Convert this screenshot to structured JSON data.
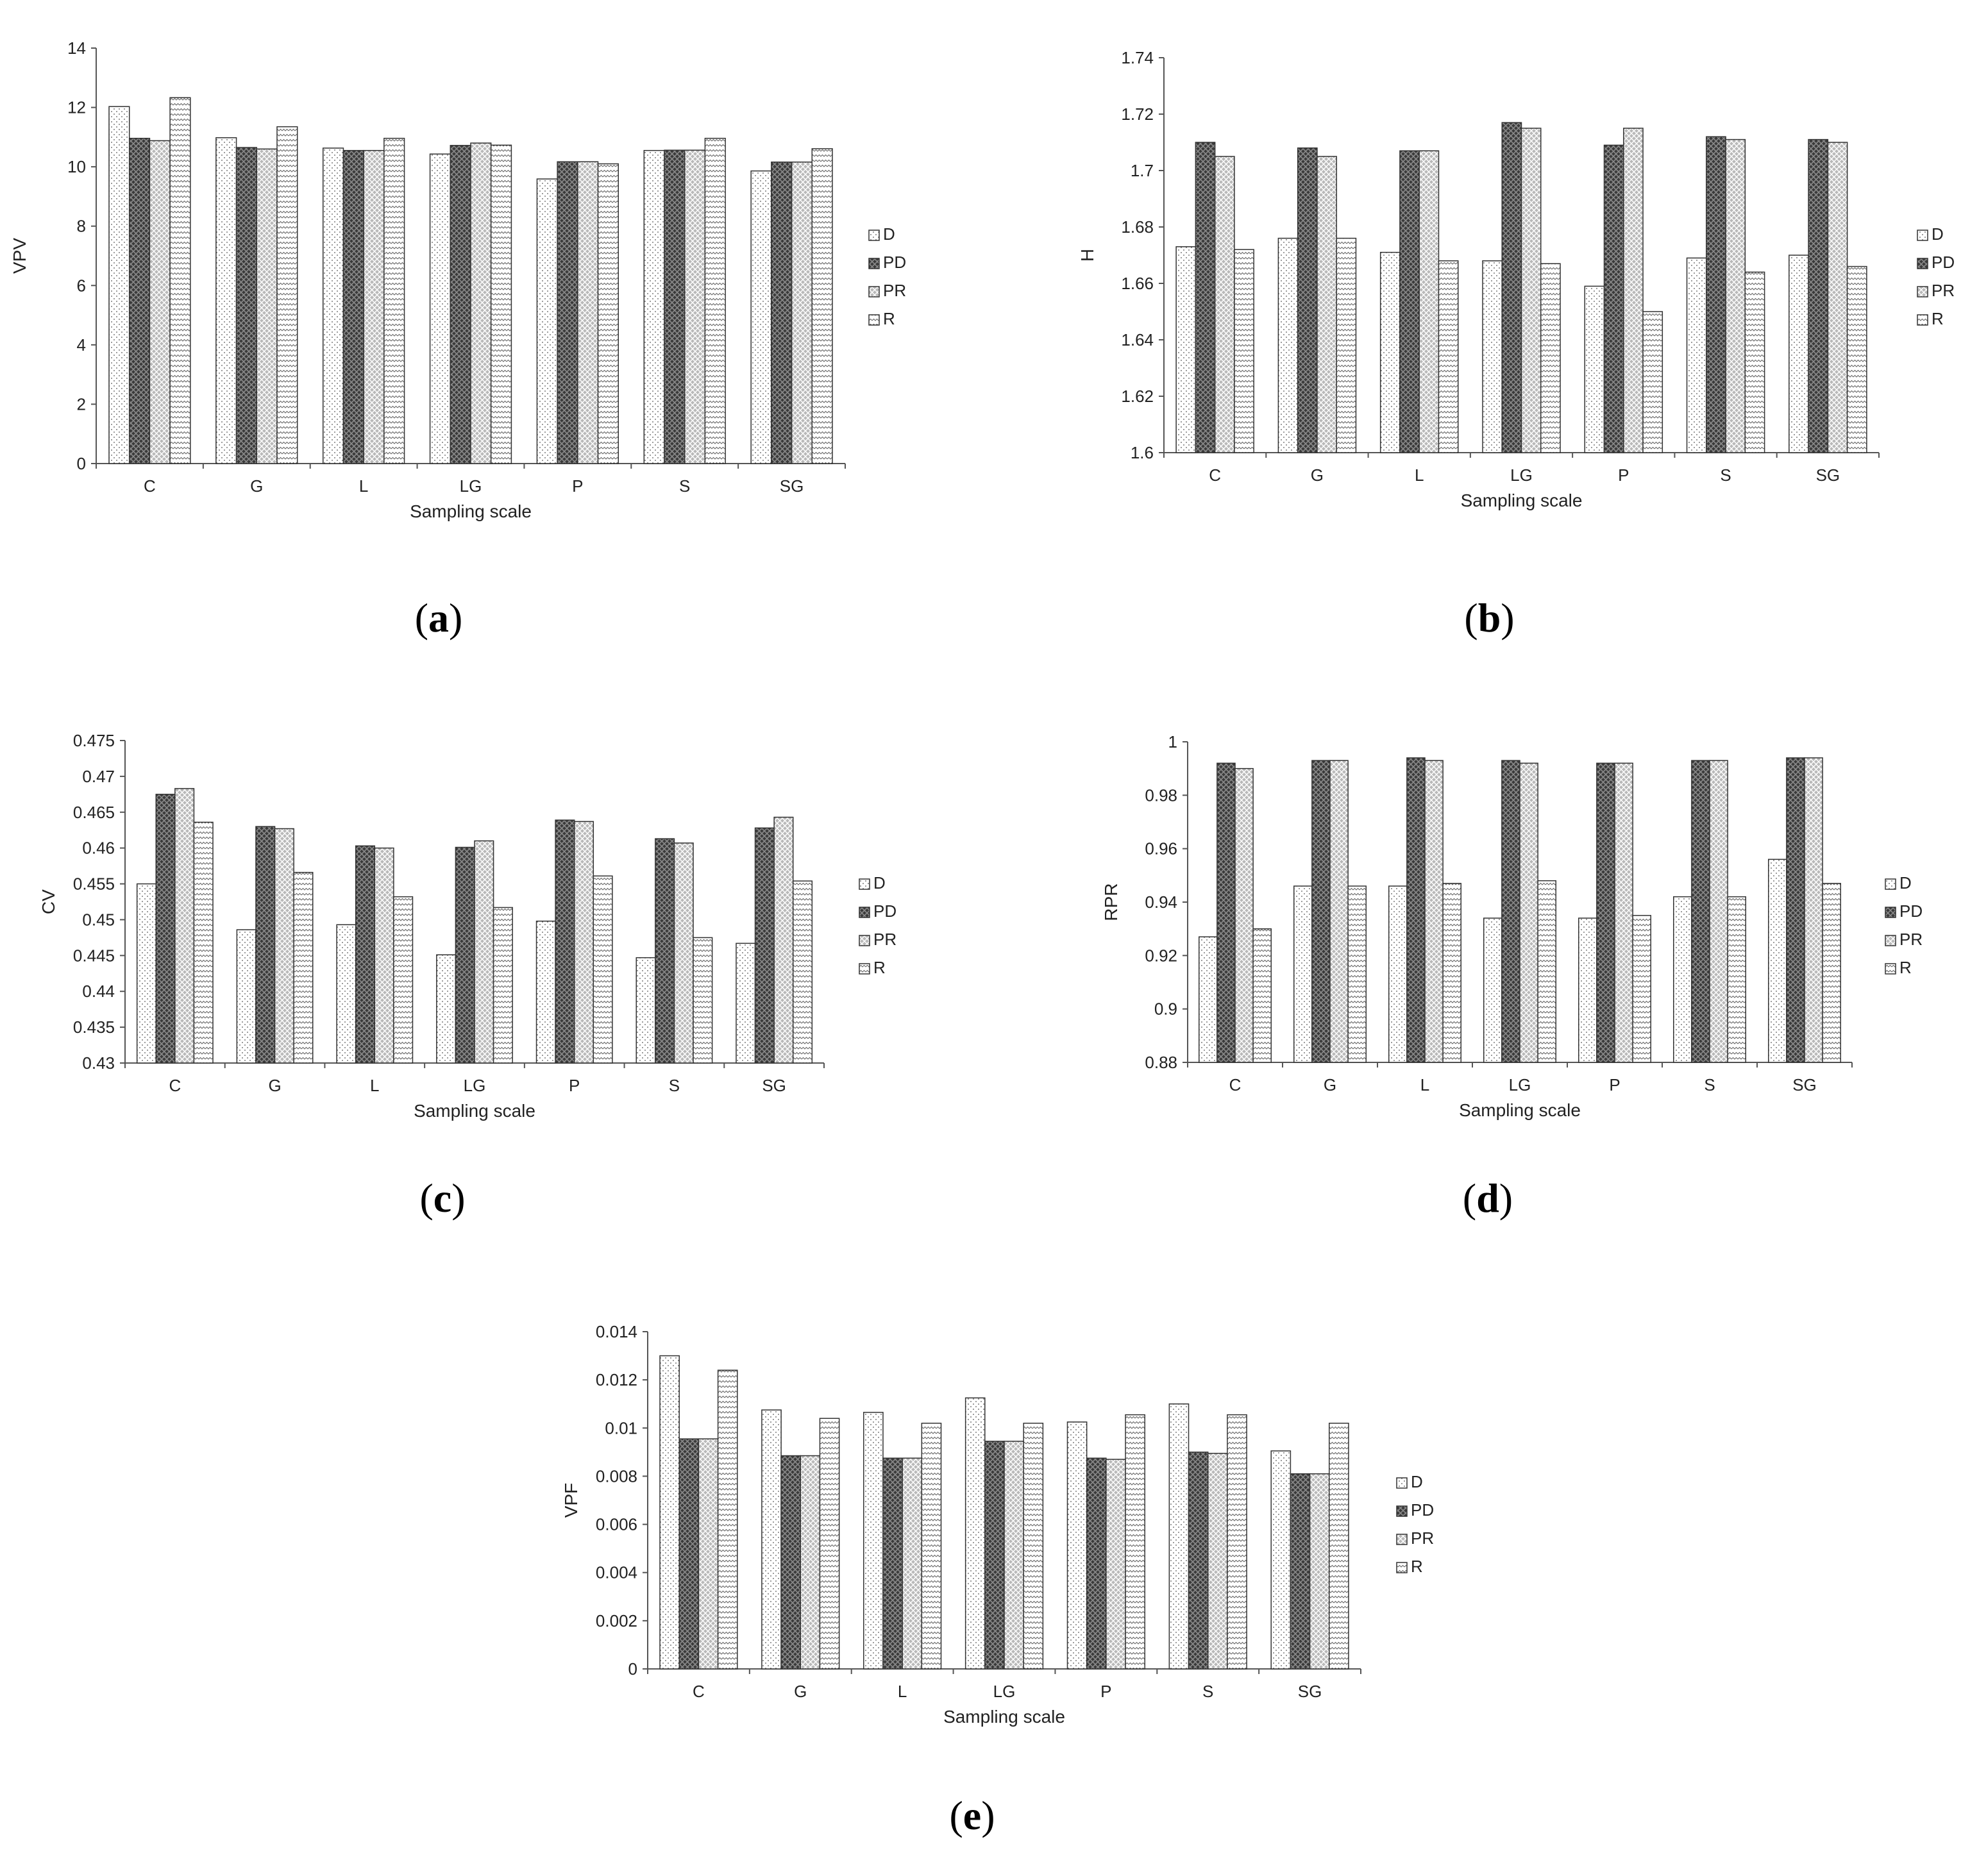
{
  "legend": {
    "series": [
      "D",
      "PD",
      "PR",
      "R"
    ]
  },
  "chart_data": [
    {
      "type": "bar",
      "panel_label": "a",
      "ylabel": "VPV",
      "xlabel": "Sampling scale",
      "categories": [
        "C",
        "G",
        "L",
        "LG",
        "P",
        "S",
        "SG"
      ],
      "ylim": [
        0,
        14
      ],
      "yticks": [
        0,
        2,
        4,
        6,
        8,
        10,
        12,
        14
      ],
      "ytick_labels": [
        "0",
        "2",
        "4",
        "6",
        "8",
        "10",
        "12",
        "14"
      ],
      "grid": false,
      "legend_position": "right",
      "series": [
        {
          "name": "D",
          "values": [
            12.03,
            10.98,
            10.63,
            10.43,
            9.59,
            10.55,
            9.86
          ]
        },
        {
          "name": "PD",
          "values": [
            10.96,
            10.65,
            10.55,
            10.72,
            10.17,
            10.56,
            10.16
          ]
        },
        {
          "name": "PR",
          "values": [
            10.88,
            10.6,
            10.55,
            10.8,
            10.17,
            10.56,
            10.16
          ]
        },
        {
          "name": "R",
          "values": [
            12.33,
            11.35,
            10.96,
            10.73,
            10.1,
            10.96,
            10.61
          ]
        }
      ]
    },
    {
      "type": "bar",
      "panel_label": "b",
      "ylabel": "H",
      "xlabel": "Sampling scale",
      "categories": [
        "C",
        "G",
        "L",
        "LG",
        "P",
        "S",
        "SG"
      ],
      "ylim": [
        1.6,
        1.74
      ],
      "yticks": [
        1.6,
        1.62,
        1.64,
        1.66,
        1.68,
        1.7,
        1.72,
        1.74
      ],
      "ytick_labels": [
        "1.6",
        "1.62",
        "1.64",
        "1.66",
        "1.68",
        "1.7",
        "1.72",
        "1.74"
      ],
      "grid": false,
      "legend_position": "right",
      "series": [
        {
          "name": "D",
          "values": [
            1.673,
            1.676,
            1.671,
            1.668,
            1.659,
            1.669,
            1.67
          ]
        },
        {
          "name": "PD",
          "values": [
            1.71,
            1.708,
            1.707,
            1.717,
            1.709,
            1.712,
            1.711
          ]
        },
        {
          "name": "PR",
          "values": [
            1.705,
            1.705,
            1.707,
            1.715,
            1.715,
            1.711,
            1.71
          ]
        },
        {
          "name": "R",
          "values": [
            1.672,
            1.676,
            1.668,
            1.667,
            1.65,
            1.664,
            1.666
          ]
        }
      ]
    },
    {
      "type": "bar",
      "panel_label": "c",
      "ylabel": "CV",
      "xlabel": "Sampling scale",
      "categories": [
        "C",
        "G",
        "L",
        "LG",
        "P",
        "S",
        "SG"
      ],
      "ylim": [
        0.43,
        0.475
      ],
      "yticks": [
        0.43,
        0.435,
        0.44,
        0.445,
        0.45,
        0.455,
        0.46,
        0.465,
        0.47,
        0.475
      ],
      "ytick_labels": [
        "0.43",
        "0.435",
        "0.44",
        "0.445",
        "0.45",
        "0.455",
        "0.46",
        "0.465",
        "0.47",
        "0.475"
      ],
      "grid": false,
      "legend_position": "right",
      "series": [
        {
          "name": "D",
          "values": [
            0.455,
            0.4486,
            0.4493,
            0.4451,
            0.4498,
            0.4447,
            0.4467
          ]
        },
        {
          "name": "PD",
          "values": [
            0.4675,
            0.463,
            0.4603,
            0.4601,
            0.4639,
            0.4613,
            0.4628
          ]
        },
        {
          "name": "PR",
          "values": [
            0.4683,
            0.4627,
            0.46,
            0.461,
            0.4637,
            0.4607,
            0.4643
          ]
        },
        {
          "name": "R",
          "values": [
            0.4636,
            0.4566,
            0.4532,
            0.4517,
            0.4561,
            0.4475,
            0.4554
          ]
        }
      ]
    },
    {
      "type": "bar",
      "panel_label": "d",
      "ylabel": "RPR",
      "xlabel": "Sampling scale",
      "categories": [
        "C",
        "G",
        "L",
        "LG",
        "P",
        "S",
        "SG"
      ],
      "ylim": [
        0.88,
        1.0
      ],
      "yticks": [
        0.88,
        0.9,
        0.92,
        0.94,
        0.96,
        0.98,
        1.0
      ],
      "ytick_labels": [
        "0.88",
        "0.9",
        "0.92",
        "0.94",
        "0.96",
        "0.98",
        "1"
      ],
      "grid": false,
      "legend_position": "right",
      "series": [
        {
          "name": "D",
          "values": [
            0.927,
            0.946,
            0.946,
            0.934,
            0.934,
            0.942,
            0.956
          ]
        },
        {
          "name": "PD",
          "values": [
            0.992,
            0.993,
            0.994,
            0.993,
            0.992,
            0.993,
            0.994
          ]
        },
        {
          "name": "PR",
          "values": [
            0.99,
            0.993,
            0.993,
            0.992,
            0.992,
            0.993,
            0.994
          ]
        },
        {
          "name": "R",
          "values": [
            0.93,
            0.946,
            0.947,
            0.948,
            0.935,
            0.942,
            0.947
          ]
        }
      ]
    },
    {
      "type": "bar",
      "panel_label": "e",
      "ylabel": "VPF",
      "xlabel": "Sampling scale",
      "categories": [
        "C",
        "G",
        "L",
        "LG",
        "P",
        "S",
        "SG"
      ],
      "ylim": [
        0,
        0.014
      ],
      "yticks": [
        0,
        0.002,
        0.004,
        0.006,
        0.008,
        0.01,
        0.012,
        0.014
      ],
      "ytick_labels": [
        "0",
        "0.002",
        "0.004",
        "0.006",
        "0.008",
        "0.01",
        "0.012",
        "0.014"
      ],
      "grid": false,
      "legend_position": "right",
      "series": [
        {
          "name": "D",
          "values": [
            0.013,
            0.01075,
            0.01065,
            0.01125,
            0.01025,
            0.011,
            0.00905
          ]
        },
        {
          "name": "PD",
          "values": [
            0.00955,
            0.00885,
            0.00875,
            0.00945,
            0.00875,
            0.009,
            0.0081
          ]
        },
        {
          "name": "PR",
          "values": [
            0.00955,
            0.00885,
            0.00875,
            0.00945,
            0.0087,
            0.00895,
            0.0081
          ]
        },
        {
          "name": "R",
          "values": [
            0.0124,
            0.0104,
            0.0102,
            0.0102,
            0.01055,
            0.01055,
            0.0102
          ]
        }
      ]
    }
  ],
  "colors": {
    "axis": "#555555",
    "bar_stroke": "#333333",
    "D_fill": "#ffffff",
    "PD_fill": "#404040",
    "PR_fill": "#bdbdbd",
    "R_fill": "#ffffff"
  }
}
